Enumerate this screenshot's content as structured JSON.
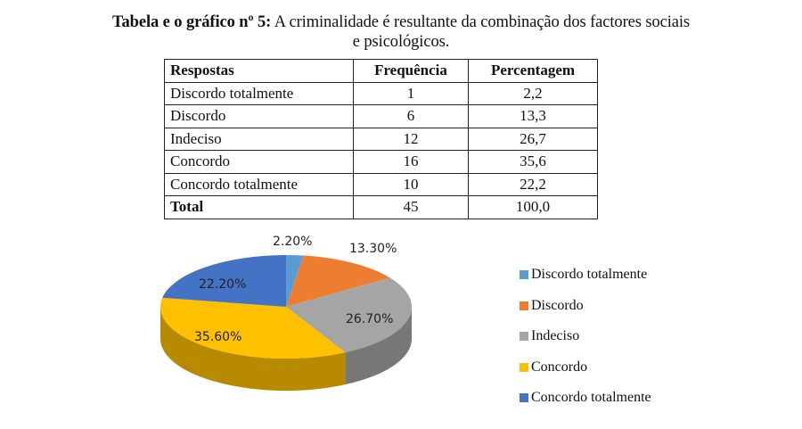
{
  "title": {
    "bold_prefix": "Tabela e o gráfico nº 5:",
    "line1_rest": " A criminalidade é resultante da combinação dos factores sociais",
    "line2": "e psicológicos."
  },
  "table": {
    "headers": [
      "Respostas",
      "Frequência",
      "Percentagem"
    ],
    "rows": [
      {
        "label": "Discordo totalmente",
        "freq": "1",
        "pct": "2,2"
      },
      {
        "label": "Discordo",
        "freq": "6",
        "pct": "13,3"
      },
      {
        "label": "Indeciso",
        "freq": "12",
        "pct": "26,7"
      },
      {
        "label": "Concordo",
        "freq": "16",
        "pct": "35,6"
      },
      {
        "label": "Concordo totalmente",
        "freq": "10",
        "pct": "22,2"
      }
    ],
    "total": {
      "label": "Total",
      "freq": "45",
      "pct": "100,0"
    }
  },
  "chart_data": {
    "type": "pie",
    "style": "3d",
    "title": "",
    "categories": [
      "Discordo totalmente",
      "Discordo",
      "Indeciso",
      "Concordo",
      "Concordo totalmente"
    ],
    "values": [
      2.2,
      13.3,
      26.7,
      35.6,
      22.2
    ],
    "data_labels": [
      "2.20%",
      "13.30%",
      "26.70%",
      "35.60%",
      "22.20%"
    ],
    "colors": [
      "#5b9bd5",
      "#ed7d31",
      "#a5a5a5",
      "#ffc000",
      "#4472c4"
    ],
    "legend_position": "right",
    "start_angle": "12 o'clock, clockwise"
  }
}
